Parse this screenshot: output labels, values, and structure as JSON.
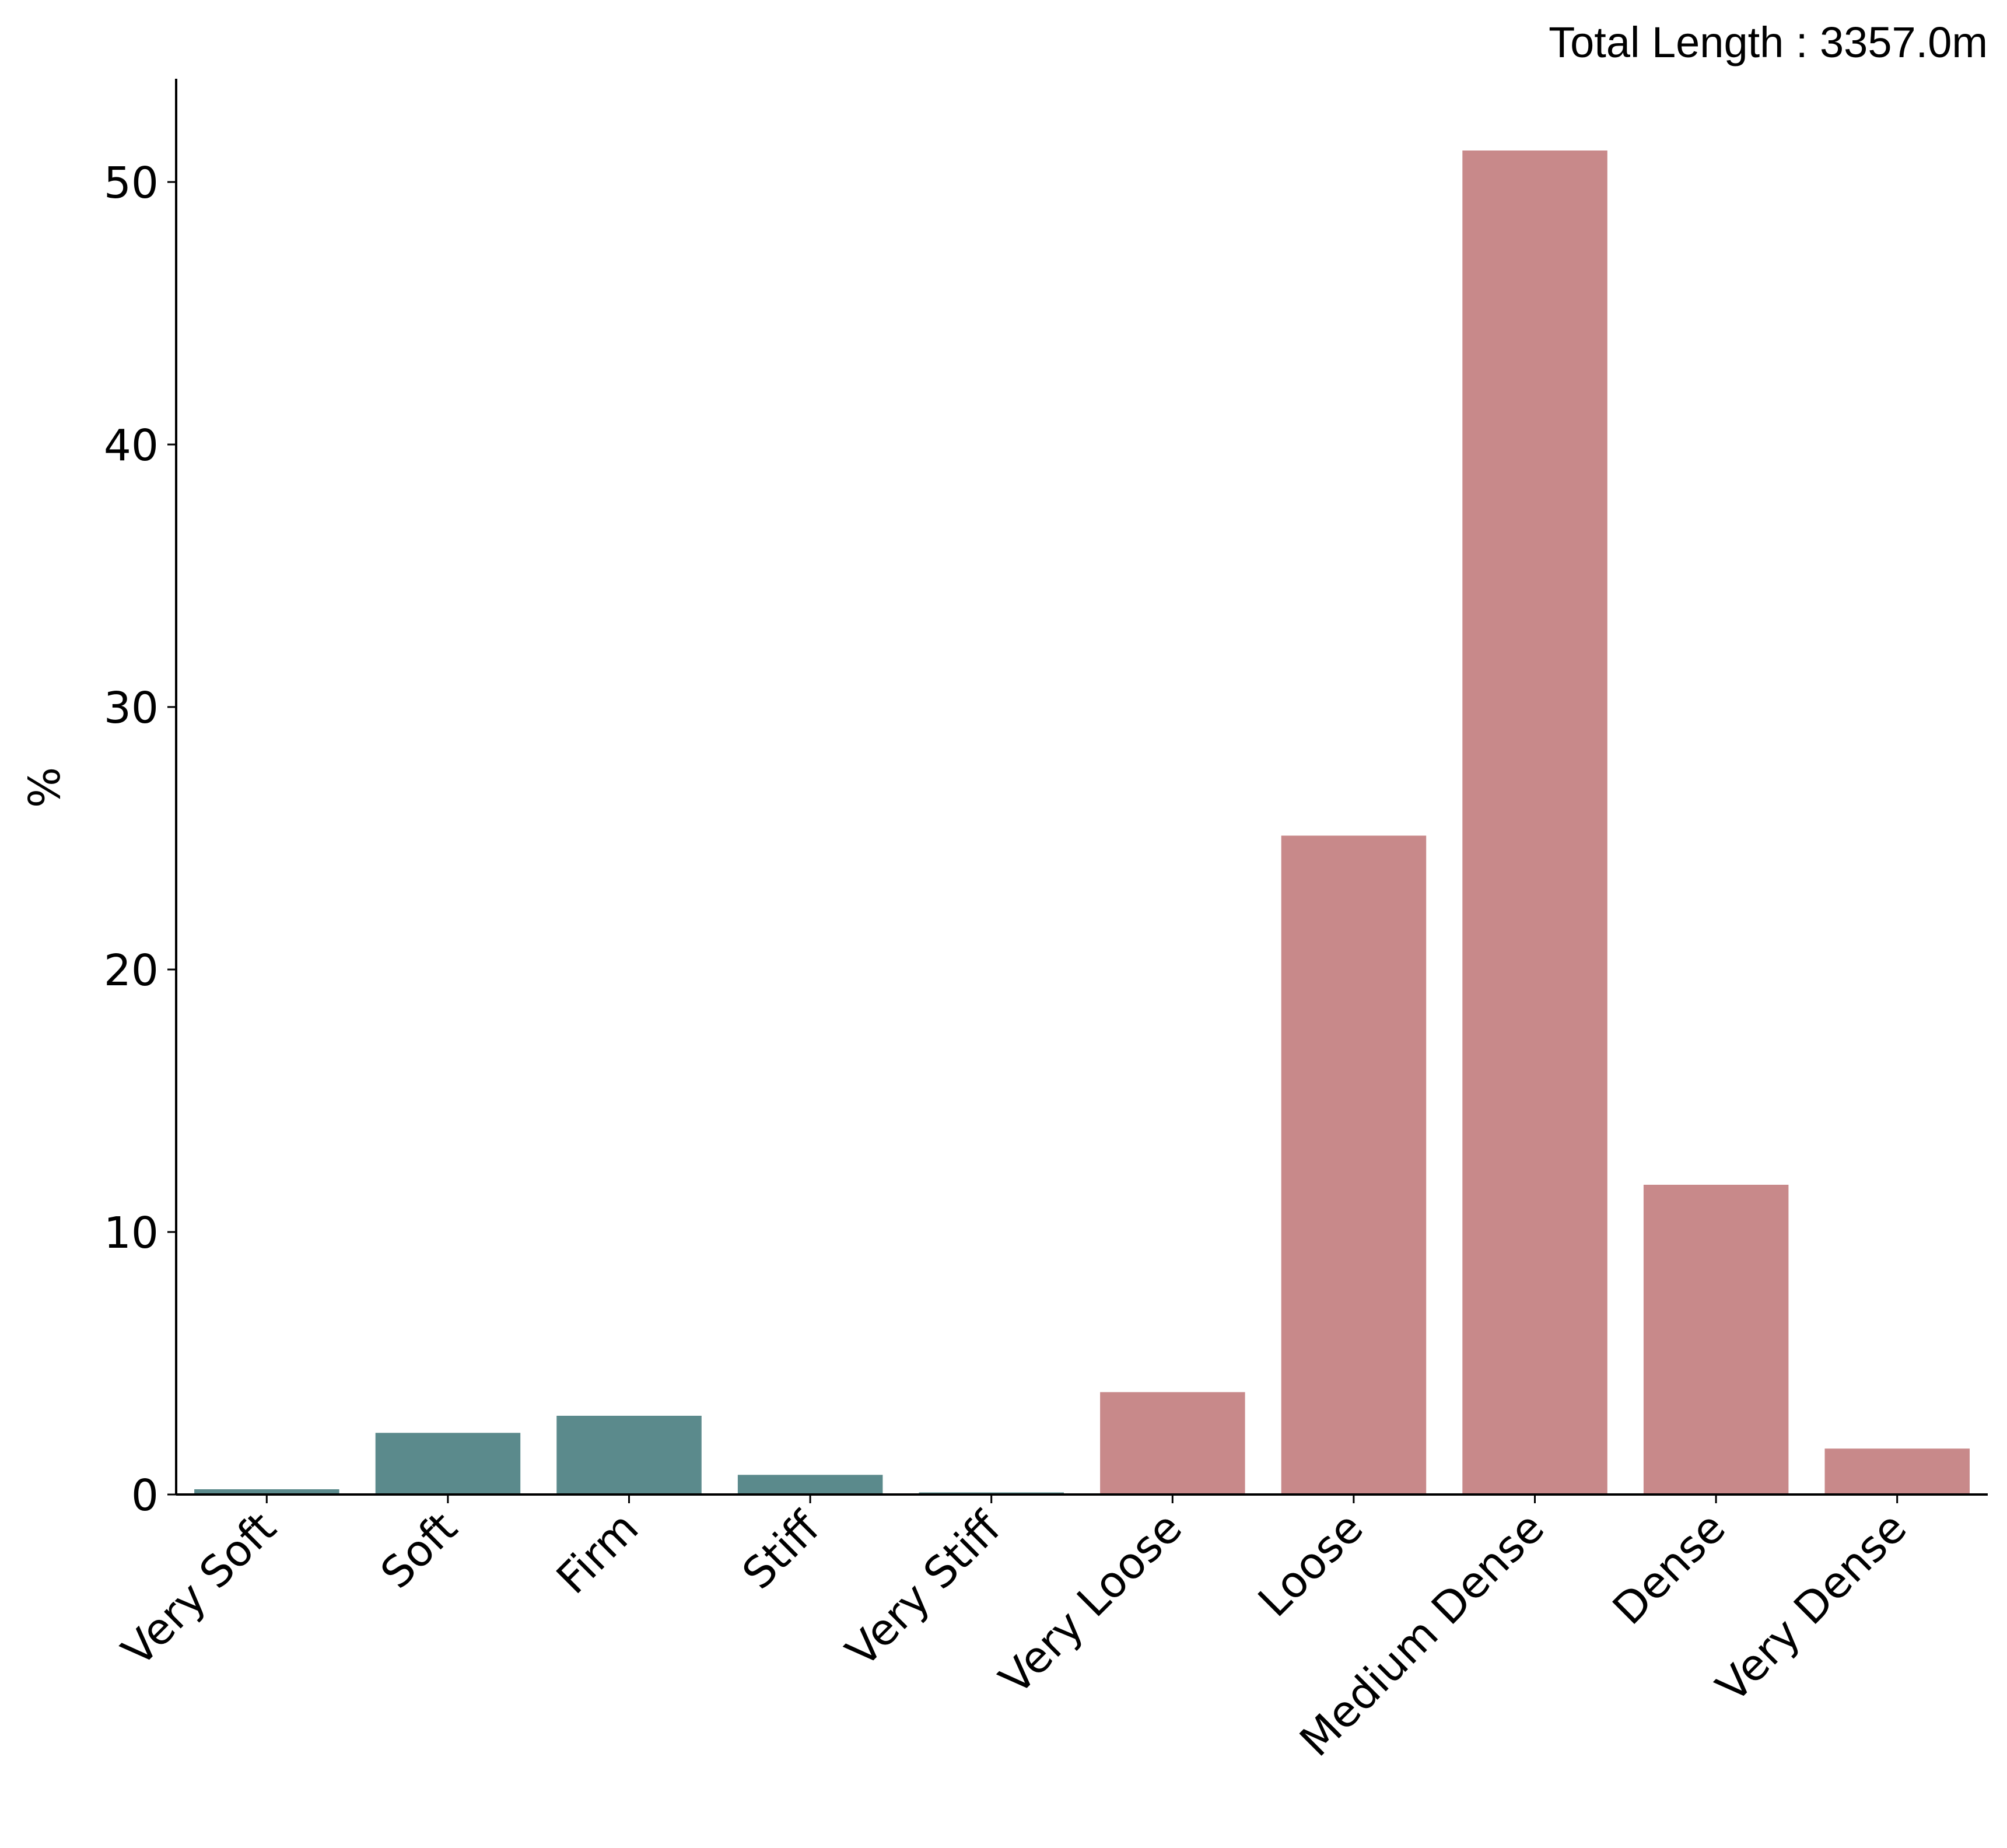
{
  "chart_data": {
    "type": "bar",
    "categories": [
      "Very Soft",
      "Soft",
      "Firm",
      "Stiff",
      "Very Stiff",
      "Very Loose",
      "Loose",
      "Medium Dense",
      "Dense",
      "Very Dense"
    ],
    "values": [
      0.2,
      2.35,
      3.0,
      0.75,
      0.08,
      3.9,
      25.1,
      51.2,
      11.8,
      1.75
    ],
    "bar_colors": [
      "#5b8a8c",
      "#5b8a8c",
      "#5b8a8c",
      "#5b8a8c",
      "#5b8a8c",
      "#c8898a",
      "#c8898a",
      "#c8898a",
      "#c8898a",
      "#c8898a"
    ],
    "title": "",
    "annotation": "Total Length : 3357.0m",
    "xlabel": "",
    "ylabel": "%",
    "ylim": [
      0,
      53.8
    ],
    "yticks": [
      0,
      10,
      20,
      30,
      40,
      50
    ],
    "grid": false,
    "spines": "left-bottom"
  }
}
